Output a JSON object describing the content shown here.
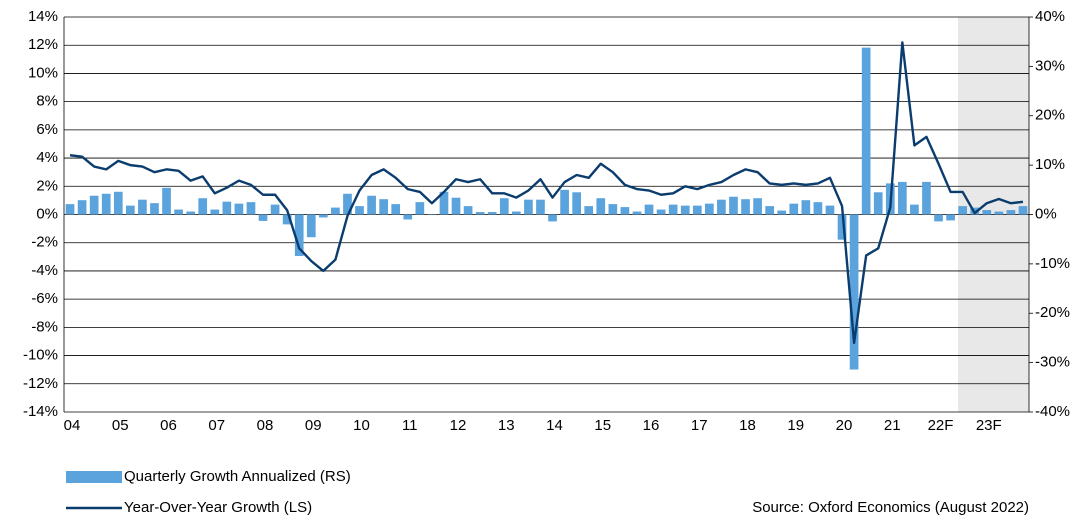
{
  "chart_data": {
    "type": "combo",
    "categories": [
      "04",
      null,
      null,
      null,
      "05",
      null,
      null,
      null,
      "06",
      null,
      null,
      null,
      "07",
      null,
      null,
      null,
      "08",
      null,
      null,
      null,
      "09",
      null,
      null,
      null,
      "10",
      null,
      null,
      null,
      "11",
      null,
      null,
      null,
      "12",
      null,
      null,
      null,
      "13",
      null,
      null,
      null,
      "14",
      null,
      null,
      null,
      "15",
      null,
      null,
      null,
      "16",
      null,
      null,
      null,
      "17",
      null,
      null,
      null,
      "18",
      null,
      null,
      null,
      "19",
      null,
      null,
      null,
      "20",
      null,
      null,
      null,
      "21",
      null,
      null,
      null,
      "22F",
      null,
      null,
      null,
      "23F",
      null,
      null,
      null
    ],
    "series": [
      {
        "name": "Quarterly Growth Annualized (RS)",
        "type": "bar",
        "axis": "y2",
        "color": "#5ba3dc",
        "values": [
          2.1,
          2.9,
          3.8,
          4.2,
          4.6,
          1.8,
          3.0,
          2.3,
          5.4,
          1.0,
          0.6,
          3.3,
          1.0,
          2.6,
          2.2,
          2.5,
          -1.3,
          2.0,
          -2.0,
          -8.4,
          -4.6,
          -0.6,
          1.4,
          4.2,
          1.7,
          3.8,
          3.1,
          2.1,
          -1.0,
          2.5,
          0.1,
          4.6,
          3.4,
          1.7,
          0.5,
          0.5,
          3.3,
          0.6,
          3.0,
          3.0,
          -1.4,
          5.0,
          4.5,
          1.7,
          3.3,
          2.1,
          1.5,
          0.6,
          2.0,
          1.0,
          2.0,
          1.8,
          1.8,
          2.2,
          3.0,
          3.6,
          3.1,
          3.3,
          1.7,
          0.8,
          2.2,
          2.9,
          2.5,
          1.8,
          -5.1,
          -31.4,
          33.8,
          4.5,
          6.3,
          6.6,
          2.0,
          6.6,
          -1.4,
          -1.2,
          1.7,
          1.4,
          0.9,
          0.6,
          0.9,
          1.7
        ]
      },
      {
        "name": "Year-Over-Year Growth (LS)",
        "type": "line",
        "color": "#0b3c6e",
        "values": [
          4.2,
          4.1,
          3.4,
          3.2,
          3.8,
          3.5,
          3.4,
          3.0,
          3.2,
          3.1,
          2.4,
          2.7,
          1.5,
          1.9,
          2.4,
          2.1,
          1.4,
          1.4,
          0.3,
          -2.4,
          -3.3,
          -4.0,
          -3.2,
          -0.1,
          1.7,
          2.8,
          3.2,
          2.6,
          1.8,
          1.6,
          0.8,
          1.6,
          2.5,
          2.3,
          2.5,
          1.5,
          1.5,
          1.2,
          1.7,
          2.5,
          1.2,
          2.3,
          2.8,
          2.6,
          3.6,
          3.0,
          2.1,
          1.8,
          1.7,
          1.4,
          1.5,
          2.0,
          1.8,
          2.1,
          2.3,
          2.8,
          3.2,
          3.0,
          2.2,
          2.1,
          2.2,
          2.1,
          2.2,
          2.6,
          0.6,
          -9.1,
          -2.9,
          -2.4,
          0.5,
          12.2,
          4.9,
          5.5,
          3.6,
          1.6,
          1.6,
          0.1,
          0.8,
          1.1,
          0.8,
          0.9
        ]
      }
    ],
    "ylim": [
      -14,
      14
    ],
    "yticks": [
      {
        "value": -14,
        "label": "-14%"
      },
      {
        "value": -12,
        "label": "-12%"
      },
      {
        "value": -10,
        "label": "-10%"
      },
      {
        "value": -8,
        "label": "-8%"
      },
      {
        "value": -6,
        "label": "-6%"
      },
      {
        "value": -4,
        "label": "-4%"
      },
      {
        "value": -2,
        "label": "-2%"
      },
      {
        "value": 0,
        "label": "0%"
      },
      {
        "value": 2,
        "label": "2%"
      },
      {
        "value": 4,
        "label": "4%"
      },
      {
        "value": 6,
        "label": "6%"
      },
      {
        "value": 8,
        "label": "8%"
      },
      {
        "value": 10,
        "label": "10%"
      },
      {
        "value": 12,
        "label": "12%"
      },
      {
        "value": 14,
        "label": "14%"
      }
    ],
    "y2lim": [
      -40,
      40
    ],
    "y2ticks": [
      {
        "value": -40,
        "label": "-40%"
      },
      {
        "value": -30,
        "label": "-30%"
      },
      {
        "value": -20,
        "label": "-20%"
      },
      {
        "value": -10,
        "label": "-10%"
      },
      {
        "value": 0,
        "label": "0%"
      },
      {
        "value": 10,
        "label": "10%"
      },
      {
        "value": 20,
        "label": "20%"
      },
      {
        "value": 30,
        "label": "30%"
      },
      {
        "value": 40,
        "label": "40%"
      }
    ],
    "grid": true,
    "source": "Source:  Oxford Economics (August 2022)"
  }
}
